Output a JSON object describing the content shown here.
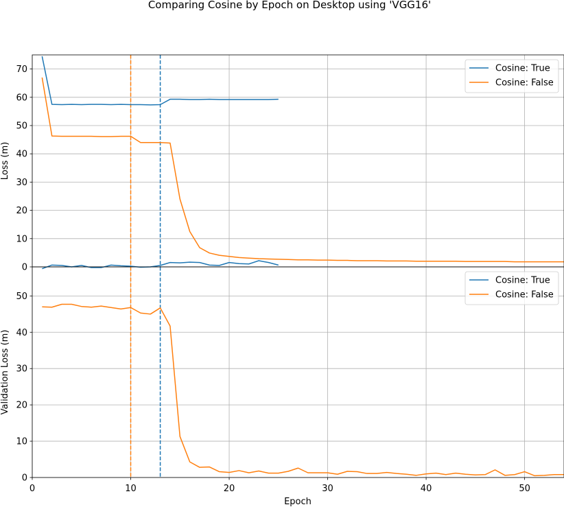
{
  "chart_data": {
    "type": "line",
    "title": "Comparing Cosine by Epoch on Desktop using 'VGG16'",
    "xlabel": "Epoch",
    "x_ticks": [
      0,
      10,
      20,
      30,
      40,
      50
    ],
    "xlim": [
      0,
      54
    ],
    "vlines": [
      {
        "x": 10,
        "color": "#ff7f0e"
      },
      {
        "x": 13,
        "color": "#1f77b4"
      }
    ],
    "panels": [
      {
        "ylabel": "Loss (m)",
        "ylim": [
          0,
          75
        ],
        "y_ticks": [
          0,
          10,
          20,
          30,
          40,
          50,
          60,
          70
        ],
        "legend_position": "top-right",
        "series": [
          {
            "name": "Cosine: True",
            "color": "#1f77b4",
            "x": [
              1,
              2,
              3,
              4,
              5,
              6,
              7,
              8,
              9,
              10,
              11,
              12,
              13,
              14,
              15,
              16,
              17,
              18,
              19,
              20,
              21,
              22,
              23,
              24,
              25
            ],
            "y": [
              74.5,
              57.5,
              57.4,
              57.5,
              57.4,
              57.5,
              57.5,
              57.4,
              57.5,
              57.4,
              57.4,
              57.3,
              57.4,
              59.3,
              59.3,
              59.2,
              59.2,
              59.3,
              59.2,
              59.2,
              59.2,
              59.2,
              59.2,
              59.2,
              59.3
            ]
          },
          {
            "name": "Cosine: False",
            "color": "#ff7f0e",
            "x": [
              1,
              2,
              3,
              4,
              5,
              6,
              7,
              8,
              9,
              10,
              11,
              12,
              13,
              14,
              15,
              16,
              17,
              18,
              19,
              20,
              21,
              22,
              23,
              24,
              25,
              26,
              27,
              28,
              29,
              30,
              31,
              32,
              33,
              34,
              35,
              36,
              37,
              38,
              39,
              40,
              41,
              42,
              43,
              44,
              45,
              46,
              47,
              48,
              49,
              50,
              51,
              52,
              53,
              54
            ],
            "y": [
              67,
              46.3,
              46.2,
              46.2,
              46.2,
              46.2,
              46.1,
              46.1,
              46.2,
              46.2,
              44.0,
              44.0,
              44.0,
              43.8,
              24.0,
              12.5,
              6.8,
              4.9,
              4.1,
              3.7,
              3.3,
              3.1,
              2.9,
              2.8,
              2.7,
              2.6,
              2.5,
              2.5,
              2.4,
              2.4,
              2.3,
              2.3,
              2.2,
              2.2,
              2.2,
              2.1,
              2.1,
              2.1,
              2.0,
              2.0,
              2.0,
              2.0,
              2.0,
              1.9,
              1.9,
              1.9,
              1.9,
              1.9,
              1.8,
              1.8,
              1.8,
              1.8,
              1.8,
              1.8
            ]
          }
        ]
      },
      {
        "ylabel": "Validation Loss (m)",
        "ylim": [
          0,
          58
        ],
        "y_ticks": [
          0,
          10,
          20,
          30,
          40,
          50
        ],
        "legend_position": "top-right",
        "series": [
          {
            "name": "Cosine: True",
            "color": "#1f77b4",
            "x": [
              1,
              2,
              3,
              4,
              5,
              6,
              7,
              8,
              9,
              10,
              11,
              12,
              13,
              14,
              15,
              16,
              17,
              18,
              19,
              20,
              21,
              22,
              23,
              24,
              25
            ],
            "y": [
              57.5,
              58.5,
              58.4,
              58.0,
              58.4,
              57.8,
              57.8,
              58.5,
              58.3,
              58.2,
              57.9,
              58.0,
              58.4,
              59.2,
              59.1,
              59.3,
              59.2,
              58.5,
              58.4,
              59.2,
              58.9,
              58.8,
              59.7,
              59.2,
              58.5
            ]
          },
          {
            "name": "Cosine: False",
            "color": "#ff7f0e",
            "x": [
              1,
              2,
              3,
              4,
              5,
              6,
              7,
              8,
              9,
              10,
              11,
              12,
              13,
              14,
              15,
              16,
              17,
              18,
              19,
              20,
              21,
              22,
              23,
              24,
              25,
              26,
              27,
              28,
              29,
              30,
              31,
              32,
              33,
              34,
              35,
              36,
              37,
              38,
              39,
              40,
              41,
              42,
              43,
              44,
              45,
              46,
              47,
              48,
              49,
              50,
              51,
              52,
              53,
              54
            ],
            "y": [
              47.0,
              46.9,
              47.7,
              47.7,
              47.1,
              46.9,
              47.2,
              46.8,
              46.4,
              46.8,
              45.3,
              45.0,
              46.7,
              41.7,
              11.3,
              4.3,
              2.8,
              2.9,
              1.6,
              1.4,
              1.9,
              1.3,
              1.8,
              1.2,
              1.2,
              1.7,
              2.6,
              1.3,
              1.3,
              1.3,
              0.9,
              1.7,
              1.6,
              1.1,
              1.1,
              1.4,
              1.1,
              0.9,
              0.6,
              1.0,
              1.2,
              0.8,
              1.2,
              0.9,
              0.7,
              0.8,
              2.1,
              0.6,
              0.8,
              1.6,
              0.5,
              0.6,
              0.8,
              0.8
            ]
          }
        ]
      }
    ]
  }
}
